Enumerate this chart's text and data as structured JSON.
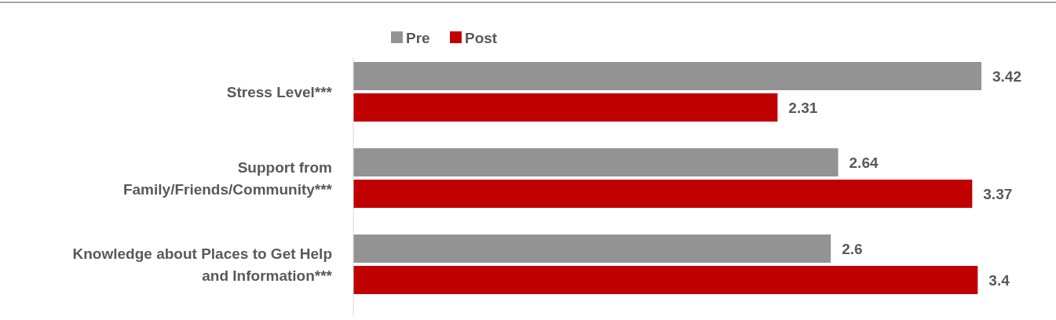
{
  "chart_data": {
    "type": "bar",
    "orientation": "horizontal",
    "relative": false,
    "categories": [
      "Stress Level***",
      "Support from Family/Friends/Community***",
      "Knowledge about Places to Get Help and Information***"
    ],
    "series": [
      {
        "name": "Pre",
        "color": "#939393",
        "values": [
          3.42,
          2.64,
          2.6
        ]
      },
      {
        "name": "Post",
        "color": "#c00000",
        "values": [
          2.31,
          3.37,
          3.4
        ]
      }
    ],
    "data_labels": true,
    "legend": "top left"
  }
}
